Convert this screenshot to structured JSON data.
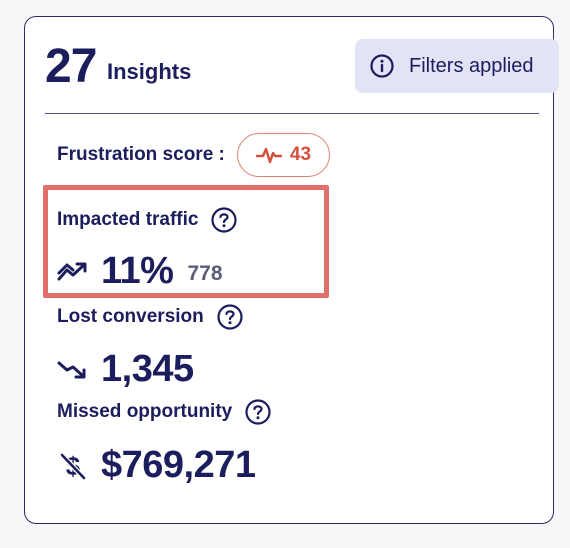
{
  "header": {
    "count": "27",
    "count_label": "Insights",
    "filters_label": "Filters applied",
    "filters_icon": "info-circle-icon"
  },
  "frustration": {
    "label": "Frustration score :",
    "value": "43",
    "icon": "pulse-icon",
    "color": "#d4503c"
  },
  "metrics": [
    {
      "label": "Impacted traffic",
      "value": "11%",
      "sub_value": "778",
      "icon": "trend-up-icon"
    },
    {
      "label": "Lost conversion",
      "value": "1,345",
      "icon": "trend-down-icon"
    },
    {
      "label": "Missed opportunity",
      "value": "$769,271",
      "icon": "no-dollar-icon"
    }
  ],
  "colors": {
    "primary": "#1b1d5c",
    "accent_bg": "#e3e3f6",
    "highlight": "#e0706a",
    "danger": "#d4503c"
  }
}
